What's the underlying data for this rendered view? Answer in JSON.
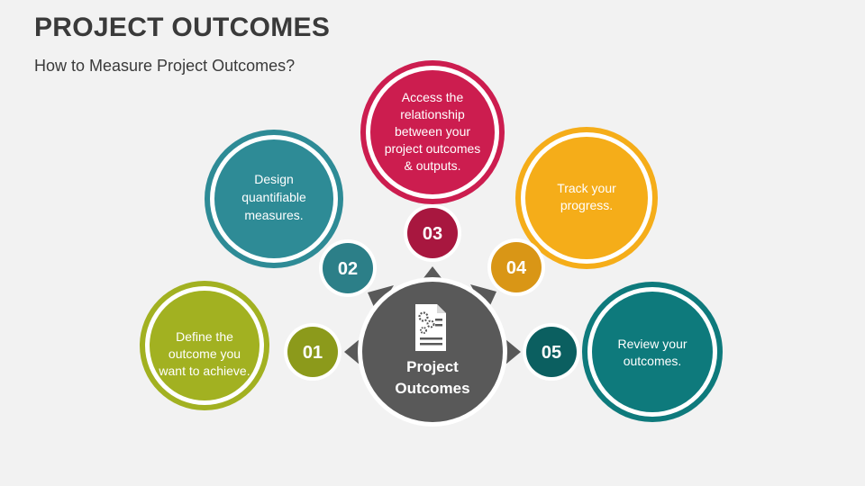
{
  "header": {
    "title": "PROJECT OUTCOMES",
    "subtitle": "How to Measure Project Outcomes?"
  },
  "center": {
    "label_line1": "Project",
    "label_line2": "Outcomes",
    "icon": "document-gears-icon",
    "color": "#595959"
  },
  "steps": [
    {
      "number": "01",
      "lines": [
        "Define the",
        "outcome you",
        "want to achieve."
      ],
      "color": "#a2b121",
      "badge_color": "#8c9a1b"
    },
    {
      "number": "02",
      "lines": [
        "Design",
        "quantifiable",
        "measures."
      ],
      "color": "#2e8b96",
      "badge_color": "#2c7f88"
    },
    {
      "number": "03",
      "lines": [
        "Access the",
        "relationship",
        "between your",
        "project outcomes",
        "& outputs."
      ],
      "color": "#cc1d4f",
      "badge_color": "#a8173f"
    },
    {
      "number": "04",
      "lines": [
        "Track your",
        "progress."
      ],
      "color": "#f5ad19",
      "badge_color": "#d99616"
    },
    {
      "number": "05",
      "lines": [
        "Review your",
        "outcomes."
      ],
      "color": "#0e7a7c",
      "badge_color": "#0b5f60"
    }
  ]
}
